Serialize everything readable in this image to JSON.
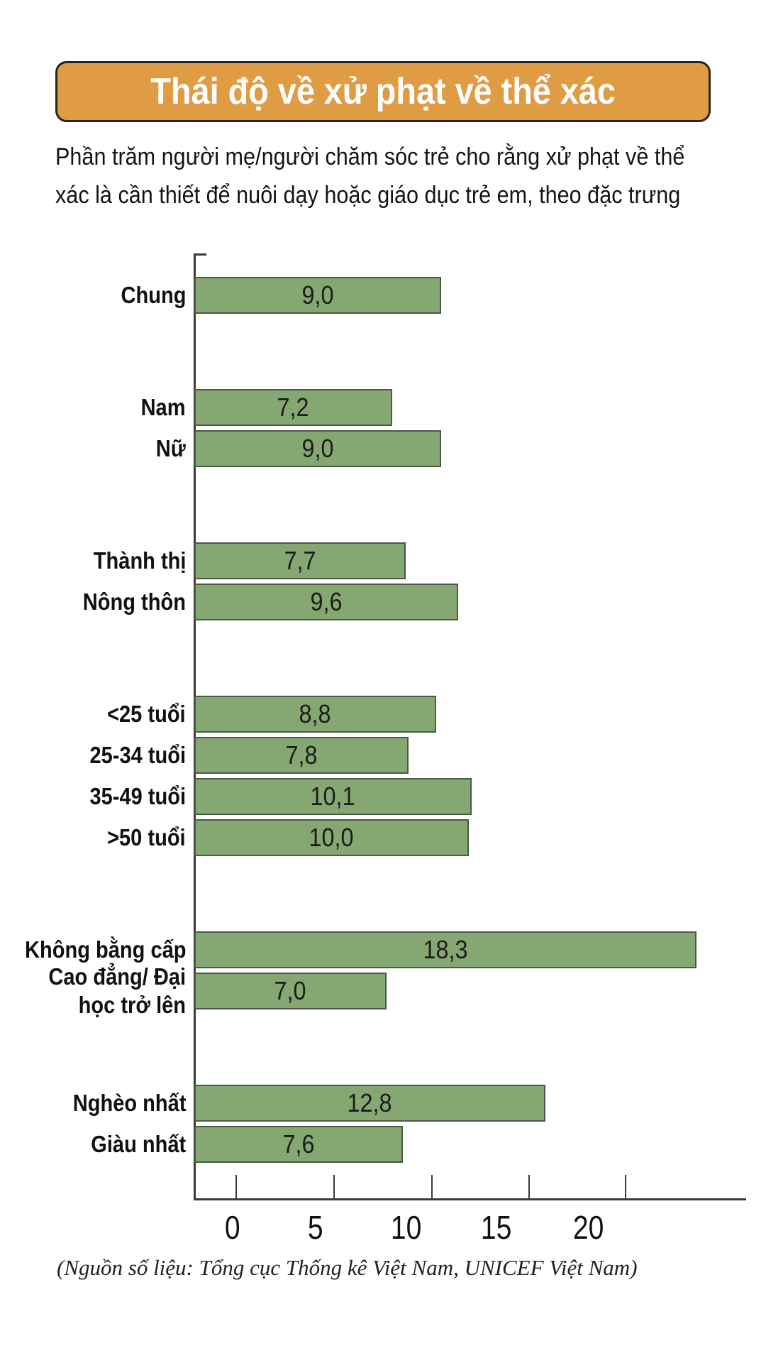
{
  "title": "Thái độ về xử phạt về thể xác",
  "subtitle": {
    "line1": "Phần trăm người mẹ/người chăm sóc trẻ cho rằng xử phạt về thể",
    "line2": "xác là cần thiết để nuôi dạy hoặc giáo dục trẻ em, theo đặc trưng"
  },
  "source": "(Nguồn số liệu: Tổng cục Thống kê Việt Nam, UNICEF Việt Nam)",
  "colors": {
    "bar_fill": "#85a873",
    "bar_border": "#4d5847",
    "title_bg": "#e09c45",
    "title_text": "#ffffff",
    "axis": "#3a3a3a",
    "text": "#111111"
  },
  "chart_data": {
    "type": "bar",
    "orientation": "horizontal",
    "title": "Thái độ về xử phạt về thể xác",
    "xlabel": "",
    "ylabel": "",
    "xlim": [
      0,
      20
    ],
    "x_ticks": [
      "0",
      "5",
      "10",
      "15",
      "20"
    ],
    "grid": false,
    "legend": false,
    "decimal_separator": ",",
    "categories": [
      "Chung",
      "Nam",
      "Nữ",
      "Thành thị",
      "Nông thôn",
      "<25 tuổi",
      "25-34 tuổi",
      "35-49 tuổi",
      ">50 tuổi",
      "Không bằng cấp",
      "Cao đẳng/ Đại\nhọc trở lên",
      "Nghèo nhất",
      "Giàu nhất"
    ],
    "values": [
      9.0,
      7.2,
      9.0,
      7.7,
      9.6,
      8.8,
      7.8,
      10.1,
      10.0,
      18.3,
      7.0,
      12.8,
      7.6
    ],
    "rows": [
      {
        "label": "Chung",
        "value": 9.0,
        "display": "9,0",
        "group": 0
      },
      {
        "label": "Nam",
        "value": 7.2,
        "display": "7,2",
        "group": 1
      },
      {
        "label": "Nữ",
        "value": 9.0,
        "display": "9,0",
        "group": 1
      },
      {
        "label": "Thành thị",
        "value": 7.7,
        "display": "7,7",
        "group": 2
      },
      {
        "label": "Nông thôn",
        "value": 9.6,
        "display": "9,6",
        "group": 2
      },
      {
        "label": "<25 tuổi",
        "value": 8.8,
        "display": "8,8",
        "group": 3
      },
      {
        "label": "25-34 tuổi",
        "value": 7.8,
        "display": "7,8",
        "group": 3
      },
      {
        "label": "35-49 tuổi",
        "value": 10.1,
        "display": "10,1",
        "group": 3
      },
      {
        "label": ">50 tuổi",
        "value": 10.0,
        "display": "10,0",
        "group": 3
      },
      {
        "label": "Không bằng cấp",
        "value": 18.3,
        "display": "18,3",
        "group": 4
      },
      {
        "label": "Cao đẳng/ Đại\nhọc trở lên",
        "value": 7.0,
        "display": "7,0",
        "group": 4
      },
      {
        "label": "Nghèo nhất",
        "value": 12.8,
        "display": "12,8",
        "group": 5
      },
      {
        "label": "Giàu nhất",
        "value": 7.6,
        "display": "7,6",
        "group": 5
      }
    ]
  }
}
